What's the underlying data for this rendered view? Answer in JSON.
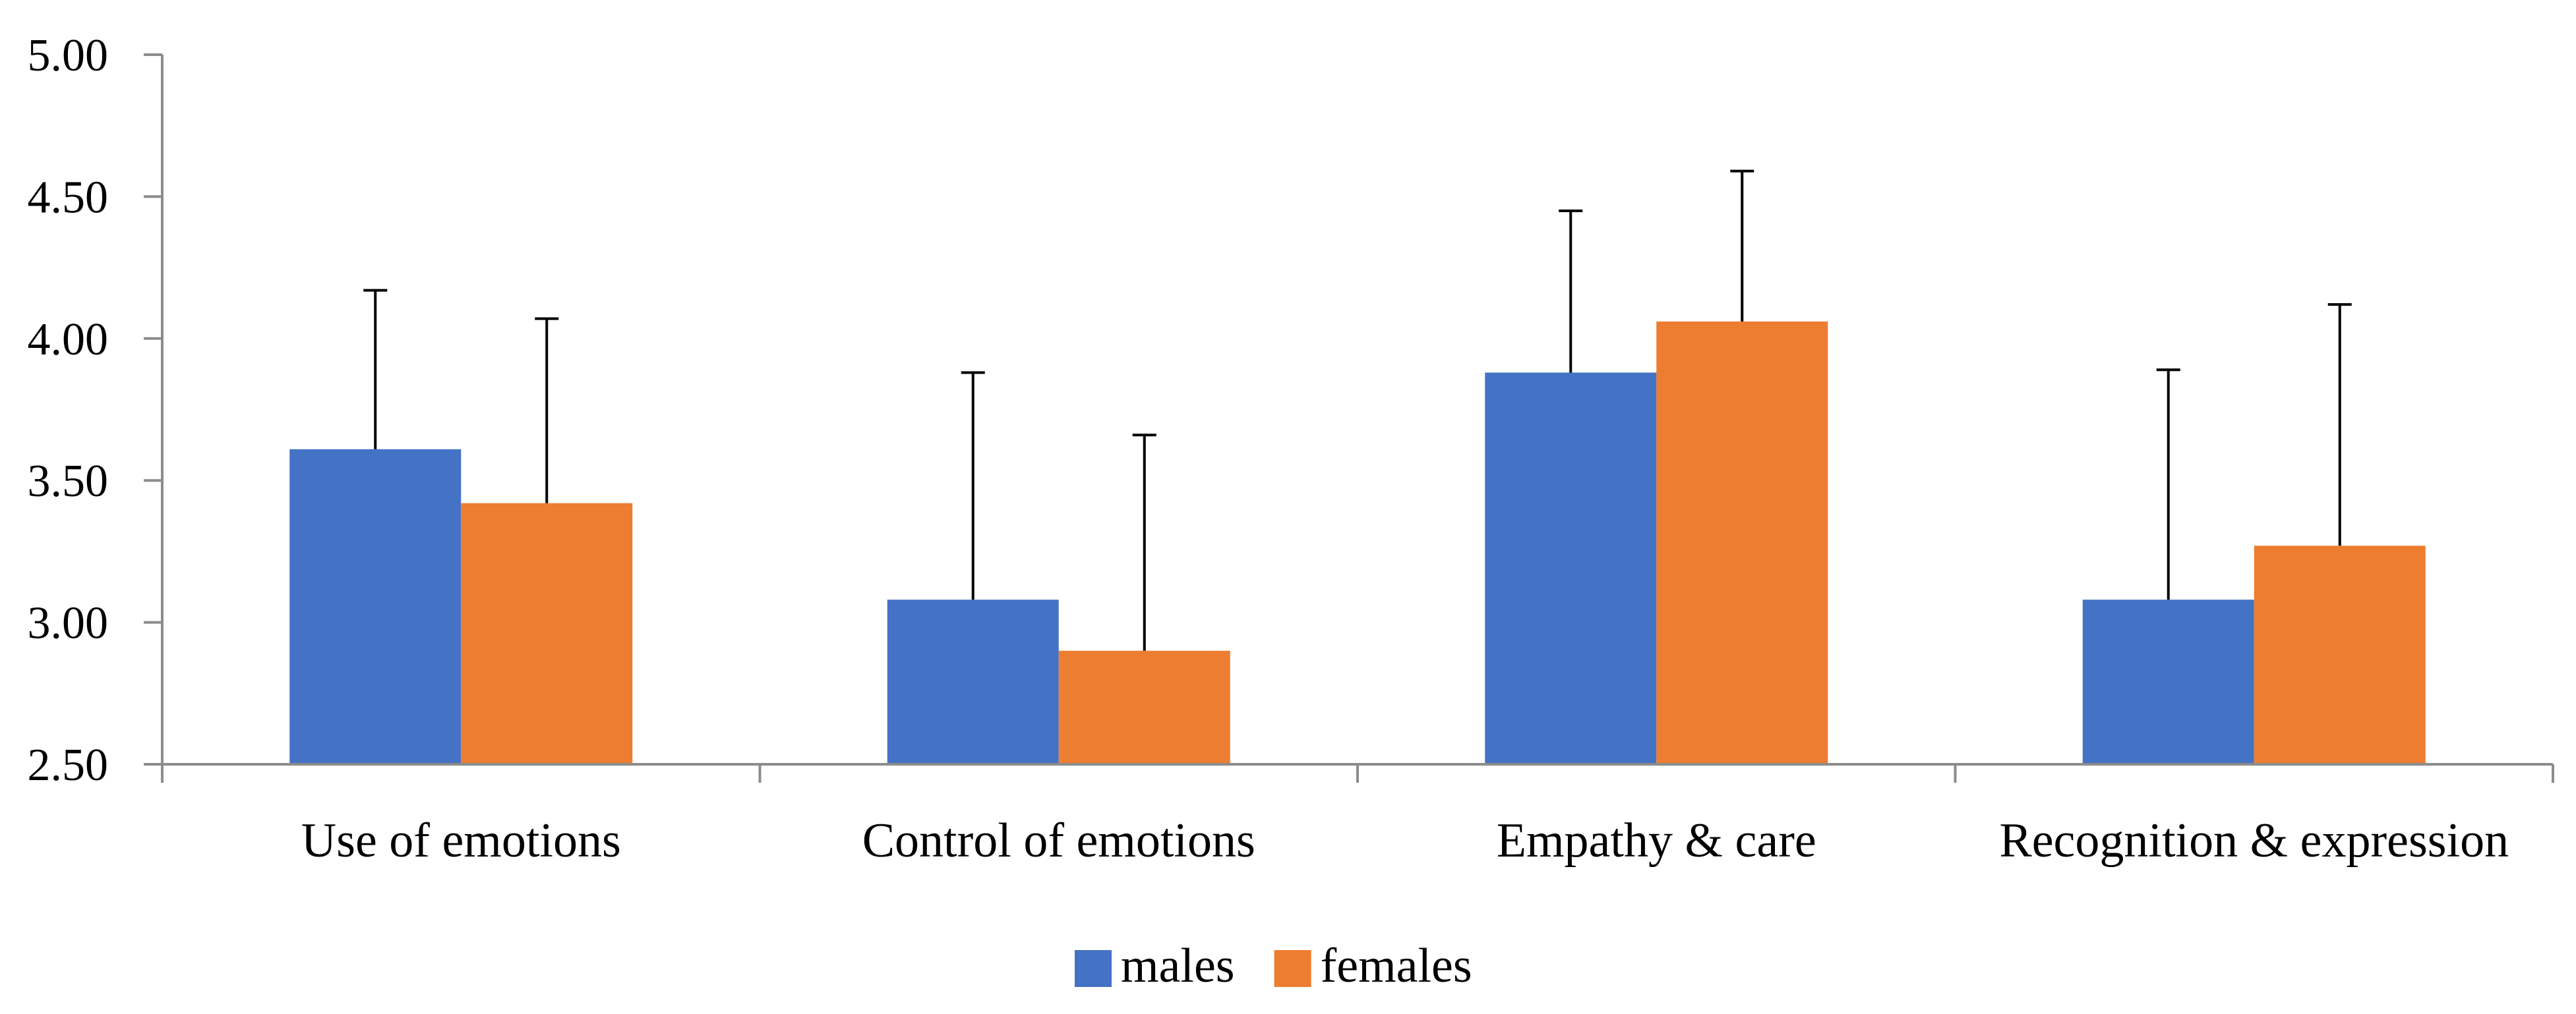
{
  "chart_data": {
    "type": "bar",
    "title": "",
    "xlabel": "",
    "ylabel": "",
    "categories": [
      "Use of emotions",
      "Control of emotions",
      "Empathy & care",
      "Recognition & expression"
    ],
    "series": [
      {
        "name": "males",
        "color": "#4472C4",
        "values": [
          3.61,
          3.08,
          3.88,
          3.08
        ],
        "error_upper": [
          4.17,
          3.88,
          4.45,
          3.89
        ]
      },
      {
        "name": "females",
        "color": "#ED7D31",
        "values": [
          3.42,
          2.9,
          4.06,
          3.27
        ],
        "error_upper": [
          4.07,
          3.66,
          4.59,
          4.12
        ]
      }
    ],
    "ylim": [
      2.5,
      5.0
    ],
    "yticks": [
      "2.50",
      "3.00",
      "3.50",
      "4.00",
      "4.50",
      "5.00"
    ],
    "ytick_values": [
      2.5,
      3.0,
      3.5,
      4.0,
      4.5,
      5.0
    ],
    "grid": false,
    "legend_position": "bottom-center",
    "axis_color": "#8C8C8C",
    "error_bar_color": "#000000"
  }
}
